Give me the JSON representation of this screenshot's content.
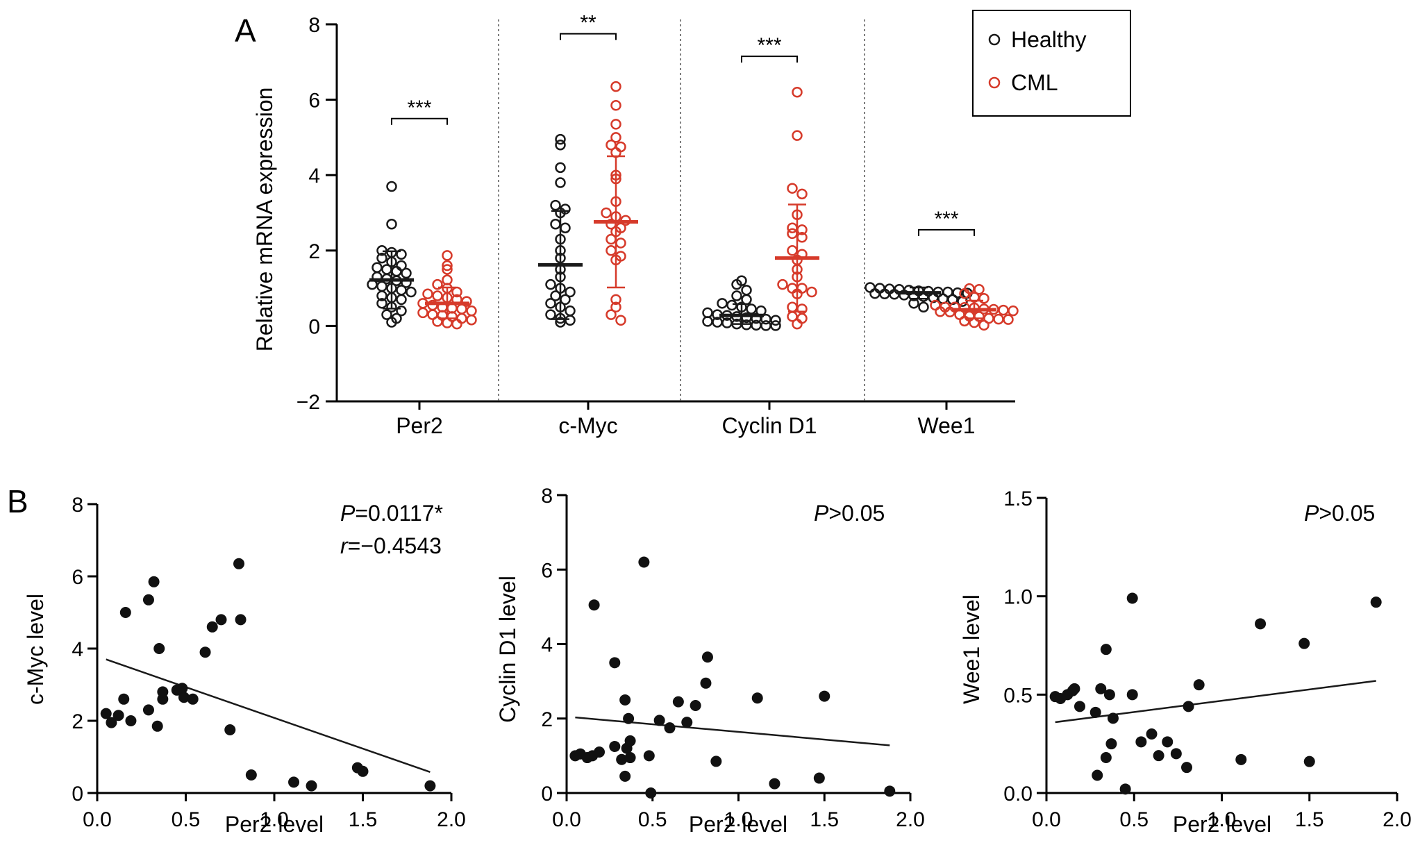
{
  "colors": {
    "healthy": "#1a1a1a",
    "cml": "#d63a2a",
    "axis": "#000000",
    "regression": "#1a1a1a",
    "divider": "#555555"
  },
  "panel_labels": {
    "a": "A",
    "b": "B"
  },
  "chart_data": [
    {
      "id": "A",
      "type": "scatter",
      "subtype": "dot-plot-mean-sd",
      "ylabel": "Relative mRNA expression",
      "ylim": [
        -2,
        8
      ],
      "yticks": [
        {
          "value": -2,
          "label": "−2"
        },
        {
          "value": 0,
          "label": "0"
        },
        {
          "value": 2,
          "label": "2"
        },
        {
          "value": 4,
          "label": "4"
        },
        {
          "value": 6,
          "label": "6"
        },
        {
          "value": 8,
          "label": "8"
        }
      ],
      "categories": [
        "Per2",
        "c-Myc",
        "Cyclin D1",
        "Wee1"
      ],
      "legend": {
        "position": "top-right",
        "entries": [
          "Healthy",
          "CML"
        ]
      },
      "series": [
        {
          "name": "Healthy",
          "groups": [
            {
              "category": "Per2",
              "mean": 1.22,
              "sd_low": 0.46,
              "sd_high": 1.98,
              "values": [
                3.7,
                2.7,
                2.0,
                1.95,
                1.9,
                1.8,
                1.7,
                1.6,
                1.55,
                1.5,
                1.45,
                1.4,
                1.3,
                1.25,
                1.2,
                1.15,
                1.1,
                1.05,
                1.0,
                0.95,
                0.9,
                0.8,
                0.75,
                0.7,
                0.6,
                0.5,
                0.4,
                0.3,
                0.2,
                0.1
              ]
            },
            {
              "category": "c-Myc",
              "mean": 1.62,
              "sd_low": 0.18,
              "sd_high": 3.05,
              "values": [
                4.95,
                4.8,
                4.2,
                3.8,
                3.2,
                3.1,
                3.0,
                2.7,
                2.6,
                2.3,
                2.0,
                1.8,
                1.5,
                1.3,
                1.1,
                1.0,
                0.9,
                0.8,
                0.7,
                0.6,
                0.5,
                0.4,
                0.3,
                0.2,
                0.15,
                0.1
              ]
            },
            {
              "category": "Cyclin D1",
              "mean": 0.28,
              "sd_low": 0.05,
              "sd_high": 0.58,
              "values": [
                1.2,
                1.1,
                0.95,
                0.8,
                0.7,
                0.6,
                0.55,
                0.5,
                0.45,
                0.4,
                0.35,
                0.3,
                0.28,
                0.25,
                0.22,
                0.2,
                0.18,
                0.15,
                0.12,
                0.1,
                0.08,
                0.05,
                0.03,
                0.02,
                0.01,
                0.01
              ]
            },
            {
              "category": "Wee1",
              "mean": 0.88,
              "sd_low": 0.72,
              "sd_high": 1.02,
              "values": [
                1.02,
                1.0,
                0.98,
                0.97,
                0.95,
                0.93,
                0.92,
                0.9,
                0.9,
                0.88,
                0.87,
                0.86,
                0.85,
                0.84,
                0.82,
                0.8,
                0.78,
                0.75,
                0.72,
                0.7,
                0.65,
                0.6,
                0.5
              ]
            }
          ]
        },
        {
          "name": "CML",
          "groups": [
            {
              "category": "Per2",
              "mean": 0.6,
              "sd_low": 0.2,
              "sd_high": 1.02,
              "values": [
                1.87,
                1.6,
                1.5,
                1.22,
                1.1,
                1.0,
                0.9,
                0.85,
                0.8,
                0.75,
                0.7,
                0.65,
                0.6,
                0.55,
                0.5,
                0.47,
                0.45,
                0.4,
                0.35,
                0.3,
                0.28,
                0.25,
                0.2,
                0.16,
                0.12,
                0.08,
                0.05
              ]
            },
            {
              "category": "c-Myc",
              "mean": 2.76,
              "sd_low": 1.02,
              "sd_high": 4.5,
              "values": [
                6.35,
                5.85,
                5.35,
                5.0,
                4.8,
                4.75,
                4.6,
                4.0,
                3.9,
                3.3,
                3.0,
                2.9,
                2.8,
                2.7,
                2.6,
                2.5,
                2.3,
                2.2,
                2.0,
                1.85,
                1.75,
                0.7,
                0.5,
                0.3,
                0.15
              ]
            },
            {
              "category": "Cyclin D1",
              "mean": 1.8,
              "sd_low": 0.38,
              "sd_high": 3.22,
              "values": [
                6.2,
                5.05,
                3.65,
                3.5,
                2.95,
                2.6,
                2.55,
                2.45,
                2.35,
                2.0,
                1.9,
                1.75,
                1.5,
                1.3,
                1.1,
                1.0,
                1.0,
                0.9,
                0.85,
                0.5,
                0.45,
                0.25,
                0.2,
                0.05
              ]
            },
            {
              "category": "Wee1",
              "mean": 0.43,
              "sd_low": 0.2,
              "sd_high": 0.67,
              "values": [
                0.99,
                0.97,
                0.86,
                0.76,
                0.73,
                0.55,
                0.5,
                0.5,
                0.49,
                0.48,
                0.45,
                0.44,
                0.42,
                0.4,
                0.38,
                0.37,
                0.3,
                0.26,
                0.25,
                0.2,
                0.18,
                0.17,
                0.13,
                0.09,
                0.02
              ]
            }
          ]
        }
      ],
      "significance": [
        {
          "category": "Per2",
          "label": "***",
          "y": 5.5
        },
        {
          "category": "c-Myc",
          "label": "**",
          "y": 7.75
        },
        {
          "category": "Cyclin D1",
          "label": "***",
          "y": 7.15
        },
        {
          "category": "Wee1",
          "label": "***",
          "y": 2.55
        }
      ]
    },
    {
      "id": "B1",
      "type": "scatter",
      "xlabel": "Per2 level",
      "ylabel": "c-Myc level",
      "xlim": [
        0,
        2
      ],
      "ylim": [
        0,
        8
      ],
      "xticks": [
        "0.0",
        "0.5",
        "1.0",
        "1.5",
        "2.0"
      ],
      "yticks": [
        "0",
        "2",
        "4",
        "6",
        "8"
      ],
      "annotations": [
        {
          "italic": "P",
          "text": "=0.0117*"
        },
        {
          "italic": "r",
          "text": "=−0.4543"
        }
      ],
      "regression": {
        "x": [
          0.05,
          1.88
        ],
        "y": [
          3.7,
          0.58
        ]
      },
      "points": [
        [
          0.05,
          2.2
        ],
        [
          0.08,
          1.95
        ],
        [
          0.12,
          2.15
        ],
        [
          0.15,
          2.6
        ],
        [
          0.16,
          5.0
        ],
        [
          0.19,
          2.0
        ],
        [
          0.29,
          2.3
        ],
        [
          0.29,
          5.35
        ],
        [
          0.32,
          5.85
        ],
        [
          0.34,
          1.85
        ],
        [
          0.35,
          4.0
        ],
        [
          0.37,
          2.6
        ],
        [
          0.37,
          2.8
        ],
        [
          0.45,
          2.85
        ],
        [
          0.48,
          2.9
        ],
        [
          0.49,
          2.65
        ],
        [
          0.54,
          2.6
        ],
        [
          0.61,
          3.9
        ],
        [
          0.65,
          4.6
        ],
        [
          0.7,
          4.8
        ],
        [
          0.75,
          1.75
        ],
        [
          0.8,
          6.35
        ],
        [
          0.81,
          4.8
        ],
        [
          0.87,
          0.5
        ],
        [
          1.11,
          0.3
        ],
        [
          1.21,
          0.2
        ],
        [
          1.47,
          0.7
        ],
        [
          1.5,
          0.6
        ],
        [
          1.88,
          0.2
        ]
      ]
    },
    {
      "id": "B2",
      "type": "scatter",
      "xlabel": "Per2 level",
      "ylabel": "Cyclin D1 level",
      "xlim": [
        0,
        2
      ],
      "ylim": [
        0,
        8
      ],
      "xticks": [
        "0.0",
        "0.5",
        "1.0",
        "1.5",
        "2.0"
      ],
      "yticks": [
        "0",
        "2",
        "4",
        "6",
        "8"
      ],
      "annotations": [
        {
          "italic": "P",
          "text": ">0.05"
        }
      ],
      "regression": {
        "x": [
          0.05,
          1.88
        ],
        "y": [
          2.03,
          1.28
        ]
      },
      "points": [
        [
          0.05,
          1.0
        ],
        [
          0.08,
          1.05
        ],
        [
          0.12,
          0.95
        ],
        [
          0.15,
          1.0
        ],
        [
          0.16,
          5.05
        ],
        [
          0.19,
          1.1
        ],
        [
          0.28,
          3.5
        ],
        [
          0.28,
          1.25
        ],
        [
          0.32,
          0.9
        ],
        [
          0.34,
          2.5
        ],
        [
          0.34,
          0.45
        ],
        [
          0.35,
          1.2
        ],
        [
          0.36,
          2.0
        ],
        [
          0.37,
          1.4
        ],
        [
          0.37,
          0.95
        ],
        [
          0.45,
          6.2
        ],
        [
          0.48,
          1.0
        ],
        [
          0.49,
          0.0
        ],
        [
          0.54,
          1.95
        ],
        [
          0.6,
          1.75
        ],
        [
          0.65,
          2.45
        ],
        [
          0.7,
          1.9
        ],
        [
          0.75,
          2.35
        ],
        [
          0.81,
          2.95
        ],
        [
          0.82,
          3.65
        ],
        [
          0.87,
          0.85
        ],
        [
          1.11,
          2.55
        ],
        [
          1.21,
          0.25
        ],
        [
          1.47,
          0.4
        ],
        [
          1.5,
          2.6
        ],
        [
          1.88,
          0.05
        ]
      ]
    },
    {
      "id": "B3",
      "type": "scatter",
      "xlabel": "Per2 level",
      "ylabel": "Wee1 level",
      "xlim": [
        0,
        2
      ],
      "ylim": [
        0,
        1.5
      ],
      "xticks": [
        "0.0",
        "0.5",
        "1.0",
        "1.5",
        "2.0"
      ],
      "yticks": [
        "0.0",
        "0.5",
        "1.0",
        "1.5"
      ],
      "annotations": [
        {
          "italic": "P",
          "text": ">0.05"
        }
      ],
      "regression": {
        "x": [
          0.05,
          1.88
        ],
        "y": [
          0.36,
          0.57
        ]
      },
      "points": [
        [
          0.05,
          0.49
        ],
        [
          0.08,
          0.48
        ],
        [
          0.12,
          0.5
        ],
        [
          0.15,
          0.52
        ],
        [
          0.16,
          0.53
        ],
        [
          0.19,
          0.44
        ],
        [
          0.28,
          0.41
        ],
        [
          0.29,
          0.09
        ],
        [
          0.31,
          0.53
        ],
        [
          0.34,
          0.73
        ],
        [
          0.34,
          0.18
        ],
        [
          0.36,
          0.5
        ],
        [
          0.37,
          0.25
        ],
        [
          0.38,
          0.38
        ],
        [
          0.45,
          0.02
        ],
        [
          0.49,
          0.99
        ],
        [
          0.49,
          0.5
        ],
        [
          0.54,
          0.26
        ],
        [
          0.6,
          0.3
        ],
        [
          0.64,
          0.19
        ],
        [
          0.69,
          0.26
        ],
        [
          0.74,
          0.2
        ],
        [
          0.8,
          0.13
        ],
        [
          0.81,
          0.44
        ],
        [
          0.87,
          0.55
        ],
        [
          1.11,
          0.17
        ],
        [
          1.22,
          0.86
        ],
        [
          1.47,
          0.76
        ],
        [
          1.5,
          0.16
        ],
        [
          1.88,
          0.97
        ]
      ]
    }
  ]
}
